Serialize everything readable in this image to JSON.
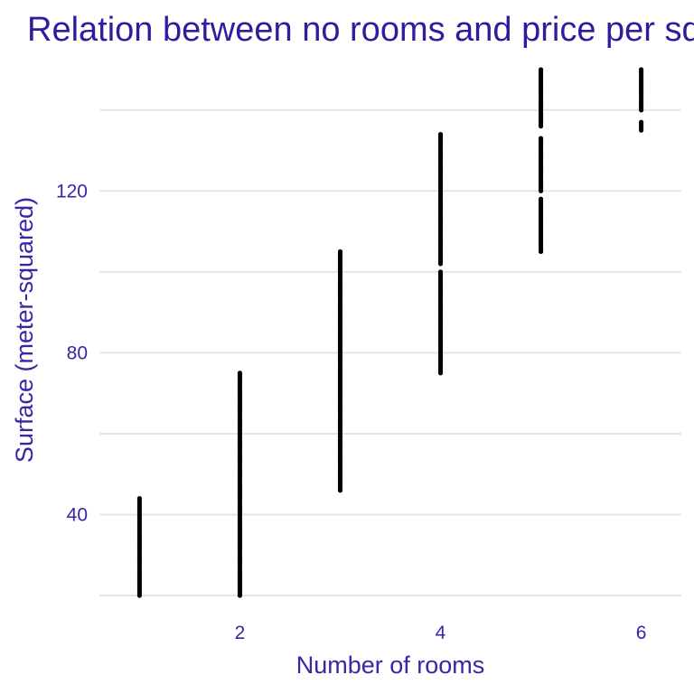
{
  "chart_data": {
    "type": "scatter",
    "title": "Relation between no rooms and price per square meter",
    "xlabel": "Number of rooms",
    "ylabel": "Surface (meter-squared)",
    "xlim": [
      0.6,
      6.4
    ],
    "ylim": [
      18,
      152
    ],
    "x_ticks": [
      2,
      4,
      6
    ],
    "y_ticks": [
      40,
      80,
      120
    ],
    "y_minor_gridlines": [
      20,
      60,
      100,
      140
    ],
    "grid": true,
    "legend": "none",
    "point_color": "#000000",
    "title_color": "#2e1d9e",
    "text_color": "#3a24a8",
    "grid_color": "#e5e5e5",
    "series": [
      {
        "x": 1,
        "y_ranges": [
          [
            20,
            44
          ]
        ]
      },
      {
        "x": 2,
        "y_ranges": [
          [
            20,
            75
          ]
        ]
      },
      {
        "x": 3,
        "y_ranges": [
          [
            46,
            105
          ]
        ]
      },
      {
        "x": 4,
        "y_ranges": [
          [
            75,
            100
          ],
          [
            102,
            134
          ]
        ]
      },
      {
        "x": 5,
        "y_ranges": [
          [
            105,
            118
          ],
          [
            120,
            133
          ],
          [
            136,
            150
          ]
        ]
      },
      {
        "x": 6,
        "y_ranges": [
          [
            135,
            137
          ],
          [
            140,
            150
          ]
        ]
      }
    ]
  }
}
